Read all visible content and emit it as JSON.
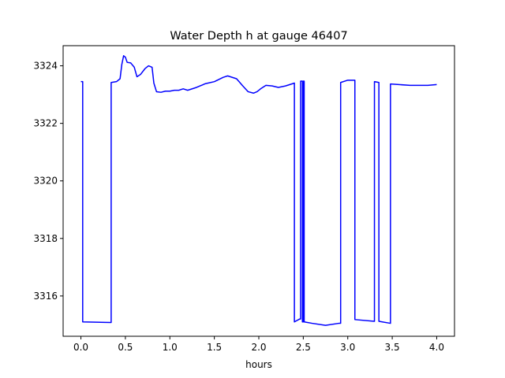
{
  "chart_data": {
    "type": "line",
    "title": "Water Depth h at gauge 46407",
    "xlabel": "hours",
    "ylabel": "",
    "xlim": [
      -0.2,
      4.2
    ],
    "ylim": [
      3314.6,
      3324.7
    ],
    "xticks": [
      0.0,
      0.5,
      1.0,
      1.5,
      2.0,
      2.5,
      3.0,
      3.5,
      4.0
    ],
    "xtick_labels": [
      "0.0",
      "0.5",
      "1.0",
      "1.5",
      "2.0",
      "2.5",
      "3.0",
      "3.5",
      "4.0"
    ],
    "yticks": [
      3316,
      3318,
      3320,
      3322,
      3324
    ],
    "ytick_labels": [
      "3316",
      "3318",
      "3320",
      "3322",
      "3324"
    ],
    "grid": false,
    "line_color": "#0000ff",
    "series": [
      {
        "x": [
          0.0,
          0.02,
          0.02,
          0.33,
          0.34,
          0.34,
          0.4,
          0.44,
          0.46,
          0.48,
          0.5,
          0.52,
          0.56,
          0.6,
          0.63,
          0.67,
          0.72,
          0.76,
          0.8,
          0.82,
          0.85,
          0.9,
          0.95,
          1.0,
          1.05,
          1.1,
          1.15,
          1.2,
          1.3,
          1.4,
          1.5,
          1.6,
          1.65,
          1.75,
          1.82,
          1.88,
          1.94,
          1.98,
          2.02,
          2.08,
          2.15,
          2.22,
          2.3,
          2.38,
          2.4,
          2.4,
          2.46,
          2.47,
          2.47,
          2.49,
          2.49,
          2.5,
          2.5,
          2.51,
          2.51,
          2.6,
          2.75,
          2.9,
          2.92,
          2.92,
          3.0,
          3.08,
          3.08,
          3.3,
          3.3,
          3.35,
          3.35,
          3.48,
          3.48,
          3.7,
          3.9,
          4.0
        ],
        "y": [
          3323.45,
          3323.45,
          3315.1,
          3315.08,
          3315.08,
          3323.42,
          3323.45,
          3323.55,
          3324.05,
          3324.35,
          3324.3,
          3324.12,
          3324.1,
          3323.95,
          3323.62,
          3323.7,
          3323.9,
          3324.0,
          3323.95,
          3323.4,
          3323.1,
          3323.08,
          3323.12,
          3323.12,
          3323.15,
          3323.15,
          3323.2,
          3323.15,
          3323.25,
          3323.38,
          3323.45,
          3323.6,
          3323.65,
          3323.55,
          3323.3,
          3323.1,
          3323.05,
          3323.1,
          3323.2,
          3323.32,
          3323.3,
          3323.25,
          3323.3,
          3323.38,
          3323.4,
          3315.1,
          3315.2,
          3315.2,
          3323.47,
          3323.47,
          3315.1,
          3315.1,
          3323.47,
          3323.47,
          3315.1,
          3315.05,
          3314.98,
          3315.05,
          3315.05,
          3323.42,
          3323.5,
          3323.5,
          3315.18,
          3315.12,
          3323.45,
          3323.42,
          3315.12,
          3315.05,
          3323.37,
          3323.32,
          3323.32,
          3323.35
        ]
      }
    ]
  }
}
